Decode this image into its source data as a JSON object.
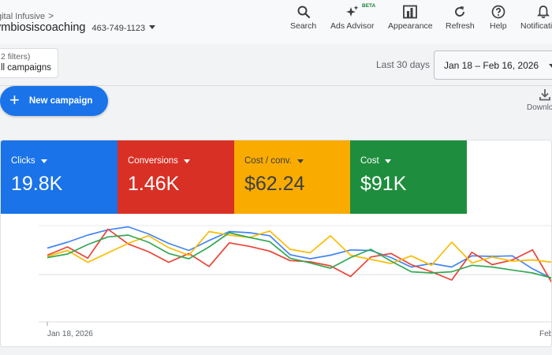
{
  "header": {
    "breadcrumb": "gital Infusive",
    "account_name": "ymbiosiscoaching",
    "account_id": "463-749-1123"
  },
  "toolbar": {
    "search": "Search",
    "ads_advisor": "Ads Advisor",
    "beta": "BETA",
    "appearance": "Appearance",
    "refresh": "Refresh",
    "help": "Help",
    "notifications": "Notificati"
  },
  "filter": {
    "count": "2 filters)",
    "label": "ll campaigns"
  },
  "date": {
    "range_label": "Last 30 days",
    "range": "Jan 18 – Feb 16, 2026"
  },
  "actions": {
    "new_campaign": "New campaign",
    "download": "Downlo"
  },
  "metrics": [
    {
      "title": "Clicks",
      "value": "19.8K",
      "color": "#1a73e8"
    },
    {
      "title": "Conversions",
      "value": "1.46K",
      "color": "#d93025"
    },
    {
      "title": "Cost / conv.",
      "value": "$62.24",
      "color": "#f9ab00"
    },
    {
      "title": "Cost",
      "value": "$91K",
      "color": "#1e8e3e"
    }
  ],
  "chart_data": {
    "type": "line",
    "x_start_label": "Jan 18, 2026",
    "x_end_label": "Feb",
    "ylim": [
      0,
      100
    ],
    "series": [
      {
        "color": "#4285f4",
        "values": [
          62,
          72,
          84,
          93,
          98,
          86,
          70,
          58,
          75,
          90,
          88,
          83,
          51,
          44,
          50,
          59,
          58,
          46,
          30,
          36,
          30,
          49,
          48,
          49,
          27,
          10
        ]
      },
      {
        "color": "#ea4335",
        "values": [
          50,
          64,
          45,
          94,
          69,
          56,
          38,
          53,
          31,
          71,
          65,
          57,
          41,
          39,
          32,
          14,
          47,
          53,
          34,
          22,
          8,
          55,
          34,
          42,
          59,
          1
        ]
      },
      {
        "color": "#fbbc04",
        "values": [
          48,
          58,
          38,
          54,
          70,
          83,
          63,
          50,
          90,
          84,
          80,
          91,
          60,
          54,
          83,
          50,
          43,
          36,
          49,
          33,
          72,
          37,
          47,
          40,
          42,
          38
        ]
      },
      {
        "color": "#34a853",
        "values": [
          46,
          52,
          68,
          81,
          84,
          72,
          53,
          44,
          64,
          88,
          80,
          73,
          45,
          37,
          28,
          46,
          60,
          40,
          22,
          20,
          22,
          33,
          30,
          25,
          20,
          11
        ]
      }
    ]
  }
}
